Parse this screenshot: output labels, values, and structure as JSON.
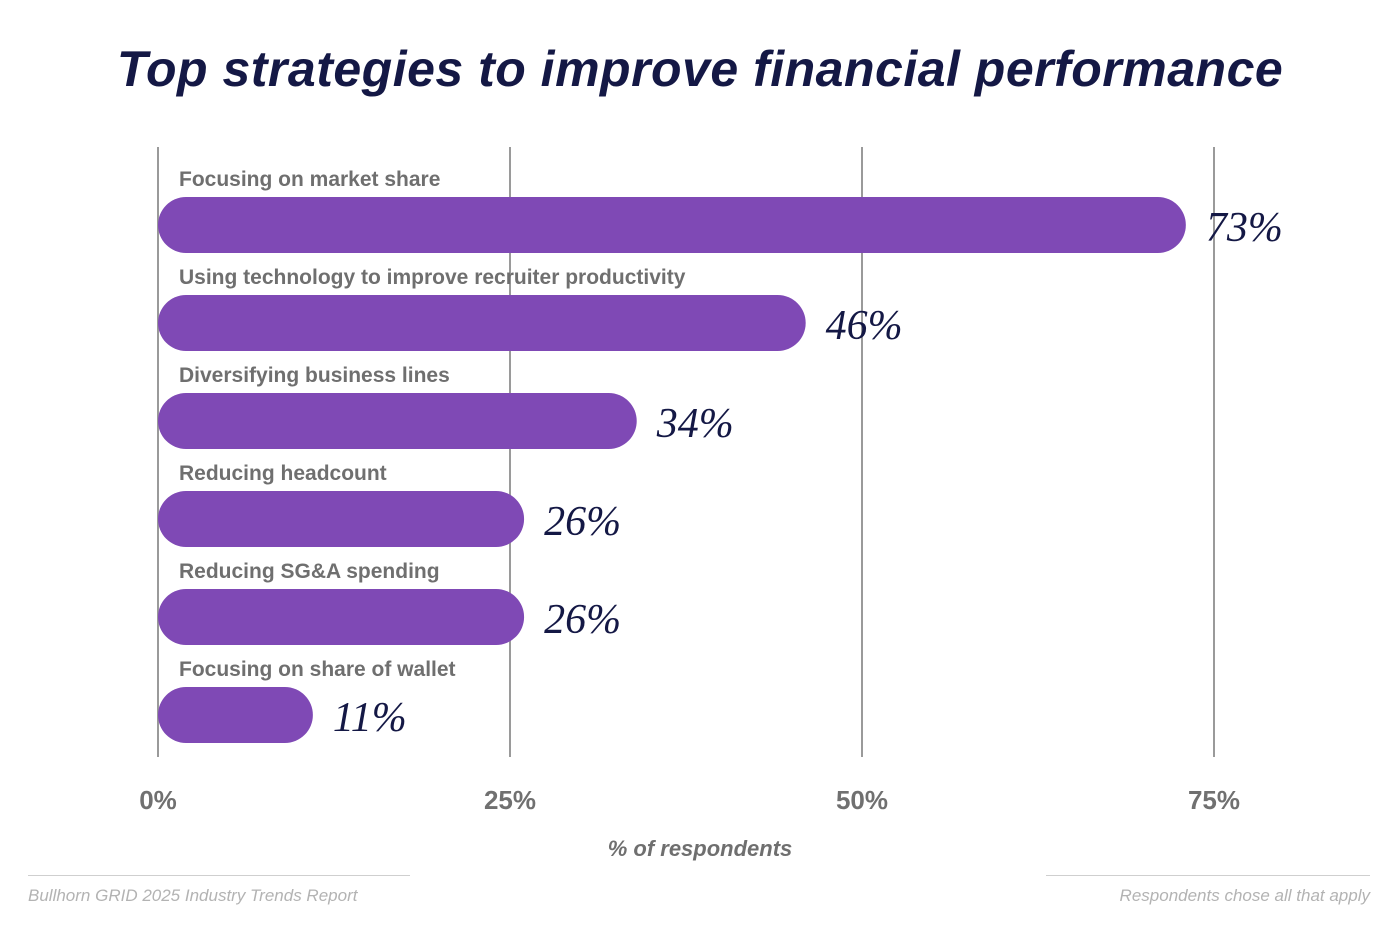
{
  "header": {
    "title": "Top strategies to improve financial performance"
  },
  "footer": {
    "source": "Bullhorn GRID 2025 Industry Trends Report",
    "note": "Respondents chose all that apply"
  },
  "colors": {
    "bar": "#7f49b5",
    "value_text": "#141845",
    "category_text": "#6f6f6f",
    "grid": "#9a9a9a"
  },
  "chart_data": {
    "type": "bar",
    "orientation": "horizontal",
    "title": "Top strategies to improve financial performance",
    "xlabel": "% of respondents",
    "ylabel": "",
    "categories": [
      "Focusing on market share",
      "Using technology to improve recruiter productivity",
      "Diversifying business lines",
      "Reducing headcount",
      "Reducing SG&A spending",
      "Focusing on share of wallet"
    ],
    "values": [
      73,
      46,
      34,
      26,
      26,
      11
    ],
    "value_labels": [
      "73%",
      "46%",
      "34%",
      "26%",
      "26%",
      "11%"
    ],
    "xlim": [
      0,
      75
    ],
    "xticks": [
      0,
      25,
      50,
      75
    ],
    "xtick_labels": [
      "0%",
      "25%",
      "50%",
      "75%"
    ],
    "grid": "vertical"
  }
}
